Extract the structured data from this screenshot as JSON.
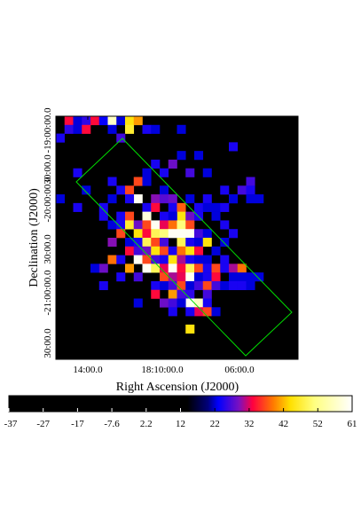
{
  "chart_data": [
    {
      "type": "heatmap",
      "title": "",
      "xlabel": "Right Ascension (J2000)",
      "ylabel": "Declination (J2000)",
      "x_tick_labels": [
        "14:00.0",
        "18:10:00.0",
        "06:00.0"
      ],
      "y_tick_labels": [
        "30:00.0",
        "-21:00:00.0",
        "30:00.0",
        "-20:00:00.0",
        "30:00.0",
        "-19:00:00.0"
      ],
      "grid": false,
      "legend": "colorbar-bottom",
      "grid_shape": {
        "cols": 28,
        "rows": 28
      },
      "cells": [
        [
          1,
          0,
          33
        ],
        [
          2,
          0,
          22
        ],
        [
          3,
          0,
          25
        ],
        [
          4,
          0,
          33
        ],
        [
          5,
          0,
          23
        ],
        [
          6,
          0,
          56
        ],
        [
          7,
          0,
          22
        ],
        [
          8,
          0,
          44
        ],
        [
          9,
          0,
          40
        ],
        [
          1,
          1,
          25
        ],
        [
          2,
          1,
          22
        ],
        [
          3,
          1,
          33
        ],
        [
          6,
          1,
          22
        ],
        [
          8,
          1,
          46
        ],
        [
          10,
          1,
          24
        ],
        [
          11,
          1,
          22
        ],
        [
          14,
          1,
          22
        ],
        [
          0,
          2,
          24
        ],
        [
          7,
          2,
          26
        ],
        [
          20,
          3,
          24
        ],
        [
          11,
          5,
          24
        ],
        [
          13,
          5,
          28
        ],
        [
          14,
          4,
          22
        ],
        [
          16,
          4,
          22
        ],
        [
          10,
          6,
          22
        ],
        [
          15,
          6,
          26
        ],
        [
          12,
          6,
          24
        ],
        [
          17,
          6,
          22
        ],
        [
          2,
          6,
          24
        ],
        [
          6,
          7,
          24
        ],
        [
          9,
          7,
          36
        ],
        [
          10,
          7,
          22
        ],
        [
          22,
          7,
          26
        ],
        [
          3,
          8,
          22
        ],
        [
          7,
          8,
          24
        ],
        [
          8,
          8,
          36
        ],
        [
          12,
          8,
          22
        ],
        [
          19,
          8,
          24
        ],
        [
          21,
          8,
          26
        ],
        [
          22,
          8,
          24
        ],
        [
          20,
          9,
          22
        ],
        [
          9,
          9,
          60
        ],
        [
          11,
          9,
          29
        ],
        [
          12,
          9,
          27
        ],
        [
          13,
          9,
          28
        ],
        [
          15,
          9,
          22
        ],
        [
          17,
          9,
          24
        ],
        [
          20,
          9,
          22
        ],
        [
          0,
          9,
          22
        ],
        [
          6,
          9,
          22
        ],
        [
          8,
          9,
          24
        ],
        [
          23,
          9,
          22
        ],
        [
          22,
          9,
          22
        ],
        [
          5,
          10,
          24
        ],
        [
          10,
          10,
          24
        ],
        [
          11,
          10,
          33
        ],
        [
          13,
          10,
          24
        ],
        [
          14,
          10,
          37
        ],
        [
          16,
          10,
          24
        ],
        [
          18,
          10,
          22
        ],
        [
          19,
          10,
          24
        ],
        [
          2,
          10,
          24
        ],
        [
          17,
          10,
          22
        ],
        [
          7,
          11,
          24
        ],
        [
          8,
          11,
          36
        ],
        [
          10,
          11,
          58
        ],
        [
          14,
          11,
          44
        ],
        [
          15,
          11,
          28
        ],
        [
          16,
          11,
          24
        ],
        [
          18,
          11,
          22
        ],
        [
          5,
          11,
          24
        ],
        [
          12,
          11,
          24
        ],
        [
          13,
          11,
          22
        ],
        [
          6,
          12,
          22
        ],
        [
          7,
          12,
          24
        ],
        [
          8,
          12,
          46
        ],
        [
          9,
          12,
          28
        ],
        [
          10,
          12,
          36
        ],
        [
          11,
          12,
          60
        ],
        [
          12,
          12,
          32
        ],
        [
          13,
          12,
          38
        ],
        [
          14,
          12,
          50
        ],
        [
          15,
          12,
          36
        ],
        [
          19,
          12,
          24
        ],
        [
          7,
          13,
          36
        ],
        [
          9,
          13,
          44
        ],
        [
          10,
          13,
          33
        ],
        [
          11,
          13,
          48
        ],
        [
          12,
          13,
          50
        ],
        [
          13,
          13,
          60
        ],
        [
          14,
          13,
          60
        ],
        [
          15,
          13,
          60
        ],
        [
          16,
          13,
          26
        ],
        [
          17,
          13,
          22
        ],
        [
          20,
          13,
          24
        ],
        [
          6,
          14,
          29
        ],
        [
          8,
          14,
          22
        ],
        [
          9,
          14,
          24
        ],
        [
          10,
          14,
          48
        ],
        [
          11,
          14,
          36
        ],
        [
          12,
          14,
          26
        ],
        [
          14,
          14,
          48
        ],
        [
          15,
          14,
          24
        ],
        [
          16,
          14,
          22
        ],
        [
          17,
          14,
          44
        ],
        [
          19,
          14,
          22
        ],
        [
          8,
          15,
          33
        ],
        [
          9,
          15,
          26
        ],
        [
          10,
          15,
          28
        ],
        [
          11,
          15,
          44
        ],
        [
          12,
          15,
          36
        ],
        [
          13,
          15,
          24
        ],
        [
          14,
          15,
          38
        ],
        [
          15,
          15,
          44
        ],
        [
          16,
          15,
          33
        ],
        [
          18,
          15,
          22
        ],
        [
          6,
          16,
          38
        ],
        [
          7,
          16,
          24
        ],
        [
          9,
          16,
          60
        ],
        [
          10,
          16,
          36
        ],
        [
          11,
          16,
          26
        ],
        [
          12,
          16,
          24
        ],
        [
          13,
          16,
          44
        ],
        [
          14,
          16,
          30
        ],
        [
          15,
          16,
          24
        ],
        [
          16,
          16,
          22
        ],
        [
          17,
          16,
          22
        ],
        [
          19,
          16,
          24
        ],
        [
          8,
          17,
          40
        ],
        [
          10,
          17,
          60
        ],
        [
          11,
          17,
          48
        ],
        [
          12,
          17,
          32
        ],
        [
          13,
          17,
          60
        ],
        [
          14,
          17,
          33
        ],
        [
          15,
          17,
          48
        ],
        [
          16,
          17,
          36
        ],
        [
          17,
          17,
          24
        ],
        [
          18,
          17,
          36
        ],
        [
          19,
          17,
          24
        ],
        [
          20,
          17,
          30
        ],
        [
          21,
          17,
          38
        ],
        [
          5,
          17,
          28
        ],
        [
          4,
          17,
          22
        ],
        [
          7,
          18,
          24
        ],
        [
          9,
          18,
          26
        ],
        [
          12,
          18,
          36
        ],
        [
          13,
          18,
          30
        ],
        [
          14,
          18,
          32
        ],
        [
          15,
          18,
          60
        ],
        [
          16,
          18,
          22
        ],
        [
          17,
          18,
          24
        ],
        [
          18,
          18,
          33
        ],
        [
          20,
          18,
          22
        ],
        [
          21,
          18,
          22
        ],
        [
          22,
          18,
          22
        ],
        [
          23,
          18,
          22
        ],
        [
          5,
          19,
          24
        ],
        [
          11,
          19,
          24
        ],
        [
          12,
          19,
          22
        ],
        [
          13,
          19,
          26
        ],
        [
          14,
          19,
          36
        ],
        [
          15,
          19,
          22
        ],
        [
          16,
          19,
          26
        ],
        [
          17,
          19,
          36
        ],
        [
          18,
          19,
          26
        ],
        [
          19,
          19,
          22
        ],
        [
          20,
          19,
          24
        ],
        [
          21,
          19,
          24
        ],
        [
          22,
          19,
          22
        ],
        [
          11,
          20,
          33
        ],
        [
          13,
          20,
          40
        ],
        [
          14,
          20,
          26
        ],
        [
          15,
          20,
          25
        ],
        [
          17,
          20,
          26
        ],
        [
          9,
          21,
          22
        ],
        [
          12,
          21,
          28
        ],
        [
          13,
          21,
          26
        ],
        [
          15,
          21,
          60
        ],
        [
          16,
          21,
          56
        ],
        [
          17,
          21,
          24
        ],
        [
          14,
          21,
          22
        ],
        [
          13,
          22,
          24
        ],
        [
          16,
          22,
          32
        ],
        [
          17,
          22,
          36
        ],
        [
          18,
          22,
          22
        ],
        [
          15,
          22,
          24
        ],
        [
          15,
          24,
          44
        ]
      ],
      "colorbar": {
        "min": -37,
        "max": 61,
        "tick_labels": [
          "-37",
          "-27",
          "-17",
          "-7.6",
          "2.2",
          "12",
          "22",
          "32",
          "42",
          "52",
          "61"
        ]
      },
      "region": {
        "shape": "box",
        "color": "#00dd00",
        "rotation_deg": 52
      }
    }
  ]
}
